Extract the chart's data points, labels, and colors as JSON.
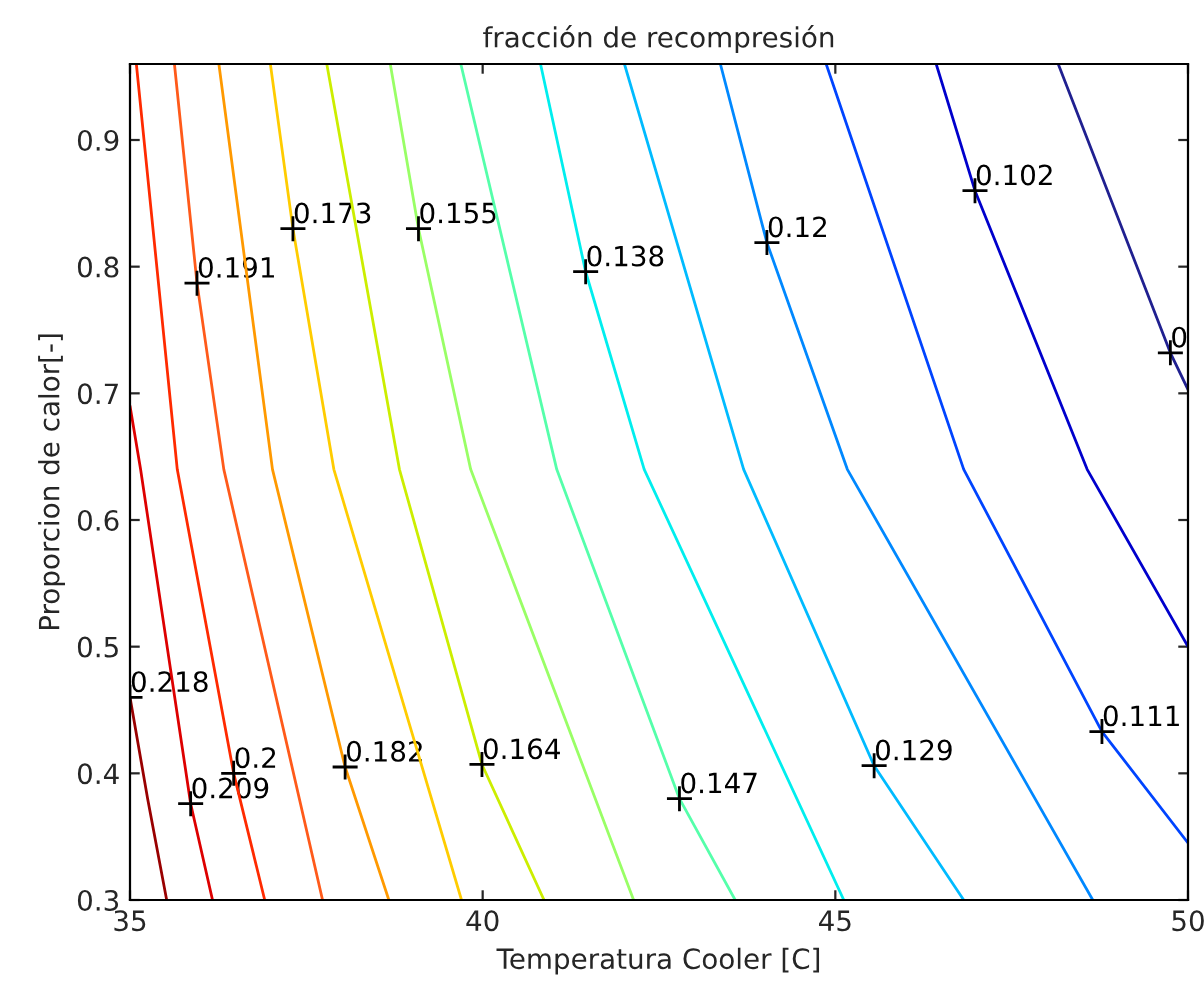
{
  "chart_data": {
    "type": "line",
    "title": "fracción de recompresión",
    "xlabel": "Temperatura Cooler [C]",
    "ylabel": "Proporcion de calor[-]",
    "xlim": [
      35,
      50
    ],
    "xticks": [
      35,
      40,
      45,
      50
    ],
    "ylim": [
      0.3,
      0.96
    ],
    "yticks": [
      0.3,
      0.4,
      0.5,
      0.6,
      0.7,
      0.8,
      0.9
    ],
    "grid": false,
    "series": [
      {
        "color": "#990000",
        "x": [
          35.0,
          35.25,
          35.52
        ],
        "values": [
          0.46,
          0.38,
          0.3
        ]
      },
      {
        "color": "#dd0000",
        "x": [
          35.0,
          35.15,
          35.86,
          36.17
        ],
        "values": [
          0.69,
          0.64,
          0.376,
          0.3
        ]
      },
      {
        "color": "#ff2a00",
        "x": [
          35.09,
          35.67,
          36.47,
          36.91
        ],
        "values": [
          0.96,
          0.64,
          0.4,
          0.3
        ]
      },
      {
        "color": "#ff5a1a",
        "x": [
          35.63,
          35.95,
          36.33,
          37.73
        ],
        "values": [
          0.96,
          0.787,
          0.64,
          0.3
        ]
      },
      {
        "color": "#ff9900",
        "x": [
          36.26,
          37.02,
          38.05,
          38.67
        ],
        "values": [
          0.96,
          0.64,
          0.405,
          0.3
        ]
      },
      {
        "color": "#ffcc00",
        "x": [
          36.99,
          37.31,
          37.89,
          39.7
        ],
        "values": [
          0.96,
          0.83,
          0.64,
          0.3
        ]
      },
      {
        "color": "#ccee00",
        "x": [
          37.79,
          38.82,
          39.99,
          40.87
        ],
        "values": [
          0.96,
          0.64,
          0.407,
          0.3
        ]
      },
      {
        "color": "#99ff66",
        "x": [
          38.69,
          39.09,
          39.83,
          42.14
        ],
        "values": [
          0.96,
          0.83,
          0.64,
          0.3
        ]
      },
      {
        "color": "#55ffaa",
        "x": [
          39.69,
          41.05,
          42.79,
          43.58
        ],
        "values": [
          0.96,
          0.64,
          0.38,
          0.3
        ]
      },
      {
        "color": "#00eeee",
        "x": [
          40.82,
          41.46,
          42.29,
          45.12
        ],
        "values": [
          0.96,
          0.796,
          0.64,
          0.3
        ]
      },
      {
        "color": "#00bbff",
        "x": [
          42.01,
          43.7,
          45.55,
          46.82
        ],
        "values": [
          0.96,
          0.64,
          0.406,
          0.3
        ]
      },
      {
        "color": "#0088ff",
        "x": [
          43.37,
          44.03,
          45.17,
          48.65
        ],
        "values": [
          0.96,
          0.819,
          0.64,
          0.3
        ]
      },
      {
        "color": "#0044ff",
        "x": [
          44.87,
          46.82,
          48.78,
          50.0
        ],
        "values": [
          0.96,
          0.64,
          0.433,
          0.345
        ]
      },
      {
        "color": "#0000cc",
        "x": [
          46.43,
          46.98,
          48.57,
          50.0
        ],
        "values": [
          0.96,
          0.86,
          0.64,
          0.5
        ]
      },
      {
        "color": "#202090",
        "x": [
          48.16,
          49.75,
          50.0
        ],
        "values": [
          0.96,
          0.732,
          0.703
        ]
      }
    ],
    "annotations": [
      {
        "text": "0.218",
        "x": 35.0,
        "y": 0.46
      },
      {
        "text": "0.209",
        "x": 35.86,
        "y": 0.376
      },
      {
        "text": "0.2",
        "x": 36.47,
        "y": 0.4
      },
      {
        "text": "0.191",
        "x": 35.95,
        "y": 0.787
      },
      {
        "text": "0.182",
        "x": 38.05,
        "y": 0.405
      },
      {
        "text": "0.173",
        "x": 37.31,
        "y": 0.83
      },
      {
        "text": "0.164",
        "x": 39.99,
        "y": 0.407
      },
      {
        "text": "0.155",
        "x": 39.09,
        "y": 0.83
      },
      {
        "text": "0.147",
        "x": 42.79,
        "y": 0.38
      },
      {
        "text": "0.138",
        "x": 41.46,
        "y": 0.796
      },
      {
        "text": "0.129",
        "x": 45.55,
        "y": 0.406
      },
      {
        "text": "0.12",
        "x": 44.03,
        "y": 0.819
      },
      {
        "text": "0.111",
        "x": 48.78,
        "y": 0.433
      },
      {
        "text": "0.102",
        "x": 46.98,
        "y": 0.86
      },
      {
        "text": "0",
        "x": 49.75,
        "y": 0.732
      }
    ]
  }
}
